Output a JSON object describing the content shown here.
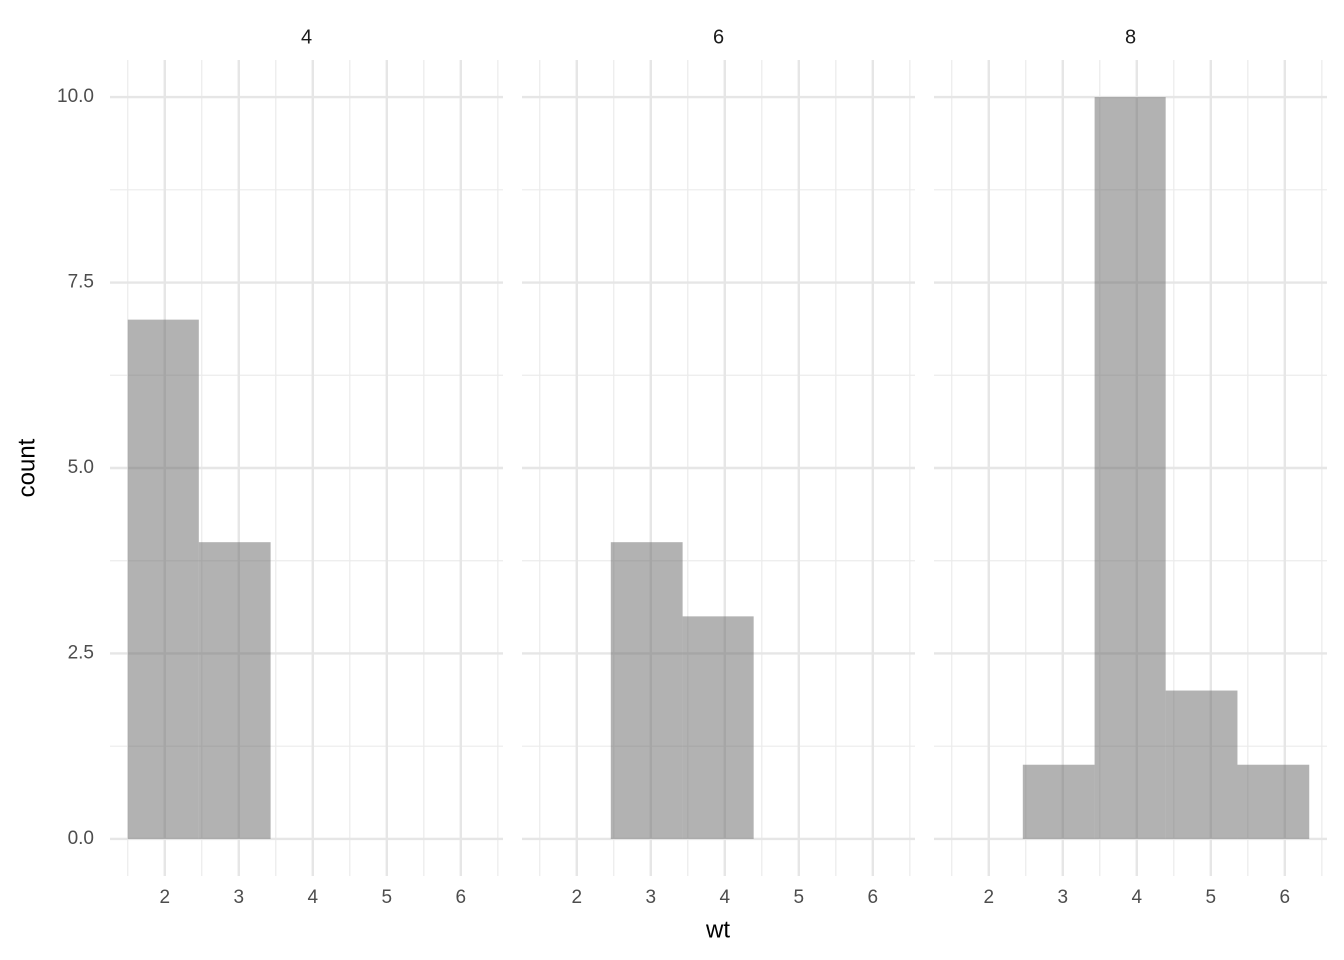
{
  "chart_data": {
    "type": "histogram",
    "x_label": "wt",
    "y_label": "count",
    "bins": [
      1.5,
      2.46,
      3.43,
      4.39,
      5.36,
      6.33
    ],
    "facets": [
      {
        "title": "4",
        "values": [
          7,
          4,
          0,
          0,
          0
        ]
      },
      {
        "title": "6",
        "values": [
          0,
          4,
          3,
          0,
          0
        ]
      },
      {
        "title": "8",
        "values": [
          0,
          1,
          10,
          2,
          1
        ]
      }
    ],
    "color": "#666666",
    "opacity": 0.5,
    "xlim": [
      1.26,
      6.57
    ],
    "xticks": [
      2,
      3,
      4,
      5,
      6
    ],
    "ylim": [
      -0.5,
      10.5
    ],
    "yticks": [
      {
        "value": 0,
        "label": "0.0"
      },
      2.5,
      {
        "value": 5,
        "label": "5.0"
      },
      7.5,
      {
        "value": 10,
        "label": "10.0"
      }
    ],
    "grid": true,
    "minor_grid": true
  }
}
